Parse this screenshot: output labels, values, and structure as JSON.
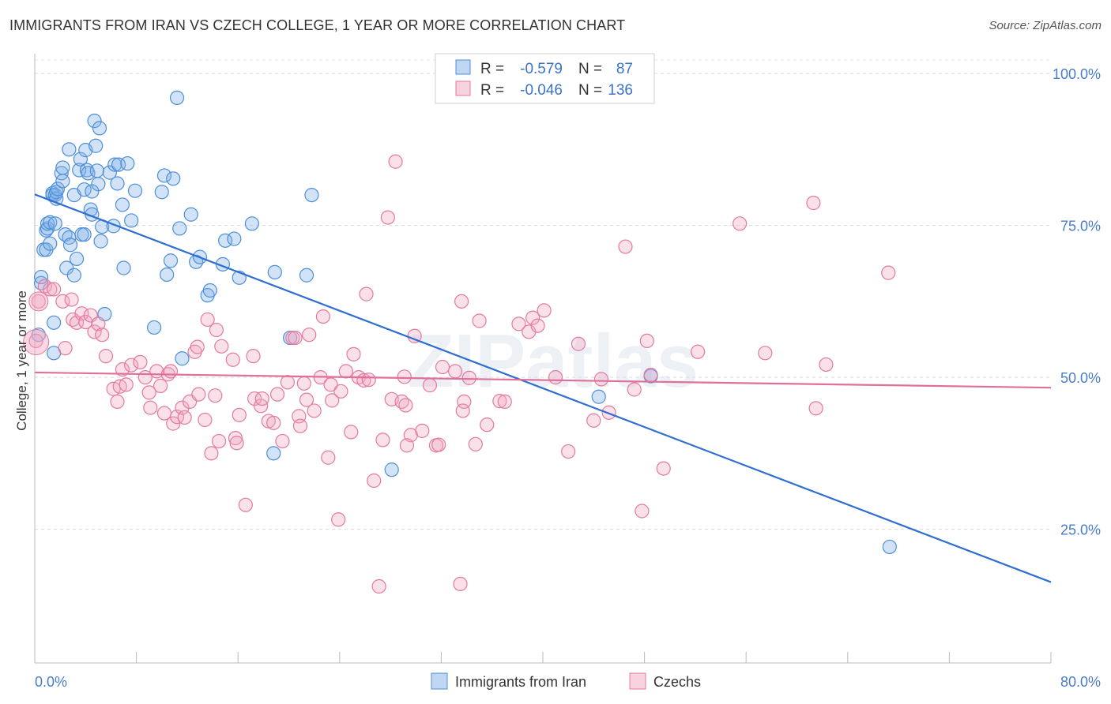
{
  "title": "IMMIGRANTS FROM IRAN VS CZECH COLLEGE, 1 YEAR OR MORE CORRELATION CHART",
  "source": "Source: ZipAtlas.com",
  "watermark": "ZIPatlas",
  "chart_data": {
    "type": "scatter",
    "title": "IMMIGRANTS FROM IRAN VS CZECH COLLEGE, 1 YEAR OR MORE CORRELATION CHART",
    "ylabel": "College, 1 year or more",
    "xlabel": "",
    "xlim": [
      0,
      80
    ],
    "ylim": [
      3,
      103
    ],
    "x_ticks": [
      "0.0%",
      "80.0%"
    ],
    "y_ticks": [
      {
        "value": 100,
        "label": "100.0%"
      },
      {
        "value": 75,
        "label": "75.0%"
      },
      {
        "value": 50,
        "label": "50.0%"
      },
      {
        "value": 25,
        "label": "25.0%"
      }
    ],
    "grid": true,
    "legend_position": "top-center",
    "legend": [
      {
        "r_label": "R =",
        "r": "-0.579",
        "n_label": "N =",
        "n": "87",
        "color": "#7fb0e8"
      },
      {
        "r_label": "R =",
        "r": "-0.046",
        "n_label": "N =",
        "n": "136",
        "color": "#f2a6c0"
      }
    ],
    "series": [
      {
        "name": "Immigrants from Iran",
        "color": "#7fb0e8",
        "stroke": "#4d8fd8",
        "trend": {
          "x": [
            0,
            80
          ],
          "y": [
            80.1,
            16.3
          ],
          "color": "#2f6fd0"
        },
        "points": [
          [
            0.3,
            57
          ],
          [
            0.5,
            65.5
          ],
          [
            0.5,
            66.5
          ],
          [
            0.7,
            71
          ],
          [
            0.9,
            74.2
          ],
          [
            0.9,
            71
          ],
          [
            1,
            74.5
          ],
          [
            1,
            75.3
          ],
          [
            1.2,
            75.5
          ],
          [
            1.2,
            72
          ],
          [
            1.4,
            80.3
          ],
          [
            1.4,
            80
          ],
          [
            1.5,
            59
          ],
          [
            1.5,
            54
          ],
          [
            1.6,
            75.3
          ],
          [
            1.6,
            80
          ],
          [
            1.7,
            79.4
          ],
          [
            1.7,
            80.5
          ],
          [
            1.8,
            81
          ],
          [
            2.1,
            83.6
          ],
          [
            2.2,
            82.3
          ],
          [
            2.2,
            84.5
          ],
          [
            2.4,
            73.5
          ],
          [
            2.5,
            68
          ],
          [
            2.7,
            87.5
          ],
          [
            2.7,
            73
          ],
          [
            2.8,
            71.8
          ],
          [
            3.1,
            80
          ],
          [
            3.1,
            66.8
          ],
          [
            3.3,
            69.5
          ],
          [
            3.5,
            84.1
          ],
          [
            3.6,
            85.9
          ],
          [
            3.7,
            73.5
          ],
          [
            3.9,
            80.9
          ],
          [
            3.9,
            73.5
          ],
          [
            4,
            87.4
          ],
          [
            4.1,
            84.1
          ],
          [
            4.2,
            83.6
          ],
          [
            4.4,
            77.6
          ],
          [
            4.5,
            80.6
          ],
          [
            4.5,
            76.8
          ],
          [
            4.7,
            92.2
          ],
          [
            4.8,
            88.1
          ],
          [
            4.9,
            84
          ],
          [
            5,
            81.8
          ],
          [
            5.1,
            91
          ],
          [
            5.2,
            72.4
          ],
          [
            5.3,
            74.8
          ],
          [
            5.5,
            60.4
          ],
          [
            5.9,
            83.7
          ],
          [
            6.2,
            74.9
          ],
          [
            6.3,
            85
          ],
          [
            6.5,
            81.9
          ],
          [
            6.6,
            85
          ],
          [
            6.9,
            78.4
          ],
          [
            7,
            68
          ],
          [
            7.3,
            85.2
          ],
          [
            7.6,
            75.8
          ],
          [
            7.9,
            80.7
          ],
          [
            9.4,
            58.2
          ],
          [
            10,
            80.5
          ],
          [
            10.2,
            83.2
          ],
          [
            10.4,
            66.9
          ],
          [
            10.7,
            69.2
          ],
          [
            10.9,
            82.7
          ],
          [
            11.2,
            96
          ],
          [
            11.4,
            74.5
          ],
          [
            11.6,
            53.1
          ],
          [
            12.3,
            76.8
          ],
          [
            12.7,
            69
          ],
          [
            13,
            69.8
          ],
          [
            13.6,
            63.5
          ],
          [
            13.8,
            64.3
          ],
          [
            14.8,
            68.6
          ],
          [
            15,
            72.5
          ],
          [
            15.7,
            72.8
          ],
          [
            16.1,
            66.4
          ],
          [
            17.1,
            75.3
          ],
          [
            18.8,
            37.5
          ],
          [
            18.9,
            67.3
          ],
          [
            20.1,
            56.5
          ],
          [
            21.4,
            66.8
          ],
          [
            21.8,
            80
          ],
          [
            28.1,
            34.8
          ],
          [
            44.4,
            46.8
          ],
          [
            48.5,
            50.2
          ],
          [
            67.3,
            22.1
          ]
        ]
      },
      {
        "name": "Czechs",
        "color": "#f2a6c0",
        "stroke": "#e37aa0",
        "trend": {
          "x": [
            0,
            80
          ],
          "y": [
            50.8,
            48.3
          ],
          "color": "#e0709a"
        },
        "points": [
          [
            0.1,
            56
          ],
          [
            0.3,
            62.5
          ],
          [
            0.8,
            65
          ],
          [
            1.2,
            64.5
          ],
          [
            1.5,
            64.5
          ],
          [
            2.2,
            62.5
          ],
          [
            2.4,
            54.8
          ],
          [
            2.9,
            62.8
          ],
          [
            3,
            59.5
          ],
          [
            3.3,
            59
          ],
          [
            3.7,
            60.5
          ],
          [
            4,
            59.1
          ],
          [
            4.4,
            60.2
          ],
          [
            4.7,
            57.5
          ],
          [
            5,
            58.8
          ],
          [
            5.3,
            57
          ],
          [
            5.6,
            53.5
          ],
          [
            6.2,
            48.1
          ],
          [
            6.5,
            46
          ],
          [
            6.7,
            48.5
          ],
          [
            6.9,
            51.3
          ],
          [
            7.2,
            48.8
          ],
          [
            7.6,
            52
          ],
          [
            8.3,
            52.5
          ],
          [
            8.7,
            50
          ],
          [
            9,
            47.5
          ],
          [
            9.1,
            45
          ],
          [
            9.6,
            51
          ],
          [
            9.9,
            48.6
          ],
          [
            10.2,
            44.1
          ],
          [
            10.5,
            50.5
          ],
          [
            10.7,
            51
          ],
          [
            10.9,
            42.4
          ],
          [
            11.2,
            43.5
          ],
          [
            11.6,
            45
          ],
          [
            11.8,
            43.4
          ],
          [
            12.2,
            46
          ],
          [
            12.6,
            54.2
          ],
          [
            12.8,
            55
          ],
          [
            12.9,
            47.2
          ],
          [
            13.4,
            43
          ],
          [
            13.6,
            59.5
          ],
          [
            13.9,
            37.5
          ],
          [
            14.2,
            47
          ],
          [
            14.3,
            57.8
          ],
          [
            14.5,
            39.5
          ],
          [
            14.7,
            55.1
          ],
          [
            15.6,
            52.9
          ],
          [
            15.8,
            40
          ],
          [
            15.9,
            39.2
          ],
          [
            16.1,
            43.8
          ],
          [
            16.6,
            29
          ],
          [
            17.2,
            53.5
          ],
          [
            17.3,
            46.5
          ],
          [
            17.8,
            45.3
          ],
          [
            17.9,
            46.5
          ],
          [
            18.4,
            42.8
          ],
          [
            18.8,
            42.5
          ],
          [
            19.1,
            47.2
          ],
          [
            19.5,
            39.5
          ],
          [
            19.9,
            49.2
          ],
          [
            20.3,
            56.5
          ],
          [
            20.5,
            56.5
          ],
          [
            20.8,
            43.6
          ],
          [
            20.9,
            42
          ],
          [
            21.2,
            49
          ],
          [
            21.4,
            46.3
          ],
          [
            21.6,
            57
          ],
          [
            22,
            44.5
          ],
          [
            22.5,
            50
          ],
          [
            22.7,
            60
          ],
          [
            23.1,
            36.8
          ],
          [
            23.3,
            48.8
          ],
          [
            23.4,
            46.2
          ],
          [
            23.9,
            26.6
          ],
          [
            24.1,
            47.7
          ],
          [
            24.5,
            51
          ],
          [
            24.9,
            41
          ],
          [
            25.1,
            53.8
          ],
          [
            25.5,
            50
          ],
          [
            25.9,
            49.5
          ],
          [
            26.1,
            63.7
          ],
          [
            26.3,
            49.6
          ],
          [
            26.7,
            33
          ],
          [
            27.1,
            15.6
          ],
          [
            27.4,
            39.7
          ],
          [
            27.8,
            76.3
          ],
          [
            28.1,
            46.4
          ],
          [
            28.4,
            85.5
          ],
          [
            28.9,
            46
          ],
          [
            29.1,
            50.1
          ],
          [
            29.2,
            45.4
          ],
          [
            29.6,
            40.5
          ],
          [
            29.3,
            38.8
          ],
          [
            29.9,
            56.8
          ],
          [
            30.5,
            41.2
          ],
          [
            31.1,
            48.7
          ],
          [
            31.6,
            38.8
          ],
          [
            31.8,
            38.9
          ],
          [
            32.1,
            51.7
          ],
          [
            33.1,
            51
          ],
          [
            33.5,
            16
          ],
          [
            33.6,
            62.5
          ],
          [
            33.8,
            46
          ],
          [
            33.7,
            44.5
          ],
          [
            34.2,
            49.9
          ],
          [
            34.7,
            39
          ],
          [
            35,
            59.3
          ],
          [
            35.6,
            42.2
          ],
          [
            36.6,
            46.1
          ],
          [
            37,
            46
          ],
          [
            38.1,
            58.8
          ],
          [
            38.9,
            57.5
          ],
          [
            39.2,
            59.8
          ],
          [
            39.6,
            58.5
          ],
          [
            40.1,
            61
          ],
          [
            41,
            50
          ],
          [
            42,
            37.8
          ],
          [
            42.8,
            55.5
          ],
          [
            44,
            42.9
          ],
          [
            44.6,
            49.7
          ],
          [
            45.2,
            44.2
          ],
          [
            46.5,
            71.5
          ],
          [
            47.2,
            48
          ],
          [
            47.8,
            28
          ],
          [
            48.2,
            56
          ],
          [
            48.5,
            50.4
          ],
          [
            49.5,
            35
          ],
          [
            52.2,
            54.2
          ],
          [
            55.5,
            75.3
          ],
          [
            57.5,
            54
          ],
          [
            61.3,
            78.7
          ],
          [
            61.5,
            44.9
          ],
          [
            62.3,
            52.1
          ],
          [
            67.2,
            67.2
          ]
        ]
      }
    ]
  },
  "bottom_legend": [
    {
      "label": "Immigrants from Iran",
      "color": "#7fb0e8"
    },
    {
      "label": "Czechs",
      "color": "#f2a6c0"
    }
  ]
}
